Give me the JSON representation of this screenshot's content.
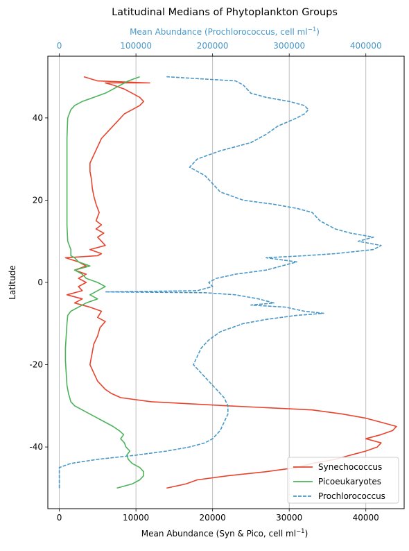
{
  "chart_data": {
    "type": "line",
    "title": "Latitudinal Medians of Phytoplankton Groups",
    "ylabel": "Latitude",
    "xlabel_bottom_prefix": "Mean Abundance (Syn & Pico, cell ml",
    "xlabel_top_prefix": "Mean Abundance (Prochlorococcus, cell ml",
    "xlabel_superscript": "−1",
    "xlabel_suffix": ")",
    "ylim": [
      -55,
      55
    ],
    "xlim_bottom": [
      -1500,
      45000
    ],
    "xlim_top": [
      -15000,
      450000
    ],
    "y_ticks": [
      -40,
      -20,
      0,
      20,
      40
    ],
    "x_ticks_bottom": [
      0,
      10000,
      20000,
      30000,
      40000
    ],
    "x_ticks_top": [
      0,
      100000,
      200000,
      300000,
      400000
    ],
    "grid": "vertical-major",
    "legend_position": "lower-right",
    "series": [
      {
        "name": "Synechococcus",
        "axis": "bottom",
        "color": "#e8432d",
        "style": "solid",
        "points": [
          [
            14000,
            -50
          ],
          [
            16500,
            -49
          ],
          [
            18000,
            -48
          ],
          [
            22000,
            -47
          ],
          [
            27000,
            -46
          ],
          [
            31000,
            -45
          ],
          [
            33000,
            -44
          ],
          [
            36000,
            -43
          ],
          [
            38000,
            -42
          ],
          [
            40000,
            -41
          ],
          [
            41500,
            -40
          ],
          [
            42000,
            -39
          ],
          [
            40000,
            -38
          ],
          [
            42000,
            -37
          ],
          [
            43500,
            -36
          ],
          [
            44000,
            -35
          ],
          [
            42000,
            -34
          ],
          [
            40000,
            -33
          ],
          [
            37000,
            -32
          ],
          [
            33000,
            -31
          ],
          [
            22000,
            -30
          ],
          [
            12000,
            -29
          ],
          [
            8000,
            -28
          ],
          [
            6800,
            -27
          ],
          [
            6000,
            -26
          ],
          [
            5500,
            -25
          ],
          [
            5000,
            -24
          ],
          [
            4500,
            -22
          ],
          [
            4000,
            -20
          ],
          [
            4200,
            -18
          ],
          [
            4500,
            -15
          ],
          [
            5000,
            -13
          ],
          [
            5300,
            -11
          ],
          [
            6000,
            -9.5
          ],
          [
            5000,
            -8.5
          ],
          [
            5500,
            -7
          ],
          [
            4000,
            -6
          ],
          [
            2000,
            -5
          ],
          [
            3000,
            -4
          ],
          [
            1000,
            -3
          ],
          [
            3000,
            -2
          ],
          [
            2500,
            -1
          ],
          [
            3500,
            0
          ],
          [
            2500,
            1
          ],
          [
            3500,
            2
          ],
          [
            2000,
            3
          ],
          [
            3500,
            4
          ],
          [
            2500,
            5
          ],
          [
            800,
            6
          ],
          [
            5000,
            6.5
          ],
          [
            5500,
            7
          ],
          [
            4000,
            8
          ],
          [
            6000,
            9
          ],
          [
            5500,
            10
          ],
          [
            5000,
            11
          ],
          [
            5800,
            12
          ],
          [
            4800,
            13
          ],
          [
            5500,
            14
          ],
          [
            4800,
            15
          ],
          [
            5200,
            17
          ],
          [
            4800,
            19
          ],
          [
            4500,
            21
          ],
          [
            4300,
            23
          ],
          [
            4200,
            25
          ],
          [
            4000,
            27
          ],
          [
            4000,
            29
          ],
          [
            4500,
            31
          ],
          [
            5000,
            33
          ],
          [
            5500,
            35
          ],
          [
            6500,
            37
          ],
          [
            7500,
            39
          ],
          [
            8500,
            41
          ],
          [
            9500,
            42
          ],
          [
            10500,
            43
          ],
          [
            11000,
            44
          ],
          [
            10500,
            45
          ],
          [
            9500,
            46
          ],
          [
            8500,
            47
          ],
          [
            7000,
            48
          ],
          [
            6000,
            48.5
          ],
          [
            11800,
            48.5
          ],
          [
            5000,
            49
          ],
          [
            3200,
            50
          ]
        ]
      },
      {
        "name": "Picoeukaryotes",
        "axis": "bottom",
        "color": "#4cb35a",
        "style": "solid",
        "points": [
          [
            7500,
            -50
          ],
          [
            9500,
            -49
          ],
          [
            10500,
            -48
          ],
          [
            11000,
            -47
          ],
          [
            11000,
            -46
          ],
          [
            10500,
            -45
          ],
          [
            9500,
            -44
          ],
          [
            9000,
            -43
          ],
          [
            8800,
            -42
          ],
          [
            9200,
            -41
          ],
          [
            8700,
            -40
          ],
          [
            8500,
            -39
          ],
          [
            8000,
            -38
          ],
          [
            8400,
            -37
          ],
          [
            7800,
            -36
          ],
          [
            7000,
            -35
          ],
          [
            6000,
            -34
          ],
          [
            5000,
            -33
          ],
          [
            4000,
            -32
          ],
          [
            3000,
            -31
          ],
          [
            2000,
            -30
          ],
          [
            1500,
            -29
          ],
          [
            1200,
            -27
          ],
          [
            1000,
            -25
          ],
          [
            900,
            -22
          ],
          [
            800,
            -19
          ],
          [
            800,
            -16
          ],
          [
            900,
            -13
          ],
          [
            1000,
            -10
          ],
          [
            1100,
            -8
          ],
          [
            1500,
            -7
          ],
          [
            2500,
            -6
          ],
          [
            3500,
            -5
          ],
          [
            5000,
            -4
          ],
          [
            4000,
            -3
          ],
          [
            6000,
            -1
          ],
          [
            5000,
            0
          ],
          [
            3500,
            1
          ],
          [
            3000,
            2
          ],
          [
            2000,
            3
          ],
          [
            4000,
            4
          ],
          [
            2500,
            5
          ],
          [
            2000,
            6
          ],
          [
            1500,
            6.5
          ],
          [
            1500,
            8
          ],
          [
            1100,
            10
          ],
          [
            1000,
            14
          ],
          [
            1000,
            19
          ],
          [
            1000,
            25
          ],
          [
            1000,
            30
          ],
          [
            1000,
            35
          ],
          [
            1100,
            40
          ],
          [
            1500,
            42
          ],
          [
            2000,
            43
          ],
          [
            3000,
            44
          ],
          [
            4500,
            45
          ],
          [
            6000,
            46
          ],
          [
            7000,
            47
          ],
          [
            8000,
            48
          ],
          [
            9000,
            49
          ],
          [
            10500,
            50
          ]
        ]
      },
      {
        "name": "Prochlorococcus",
        "axis": "top",
        "color": "#4897c8",
        "style": "dashed",
        "points": [
          [
            0,
            -50
          ],
          [
            0,
            -47
          ],
          [
            0,
            -45
          ],
          [
            15000,
            -44
          ],
          [
            50000,
            -43
          ],
          [
            100000,
            -42
          ],
          [
            140000,
            -41
          ],
          [
            170000,
            -40
          ],
          [
            190000,
            -39
          ],
          [
            200000,
            -38
          ],
          [
            210000,
            -36
          ],
          [
            215000,
            -34
          ],
          [
            220000,
            -32
          ],
          [
            220000,
            -30
          ],
          [
            215000,
            -28
          ],
          [
            205000,
            -26
          ],
          [
            195000,
            -24
          ],
          [
            185000,
            -22
          ],
          [
            175000,
            -20
          ],
          [
            180000,
            -18
          ],
          [
            185000,
            -16
          ],
          [
            195000,
            -14
          ],
          [
            210000,
            -12
          ],
          [
            240000,
            -10
          ],
          [
            270000,
            -9
          ],
          [
            310000,
            -8
          ],
          [
            345000,
            -7.5
          ],
          [
            320000,
            -7
          ],
          [
            295000,
            -6
          ],
          [
            250000,
            -5.5
          ],
          [
            280000,
            -5
          ],
          [
            260000,
            -4
          ],
          [
            230000,
            -3
          ],
          [
            190000,
            -2.5
          ],
          [
            60000,
            -2.3
          ],
          [
            180000,
            -2
          ],
          [
            200000,
            -1
          ],
          [
            195000,
            0
          ],
          [
            205000,
            1
          ],
          [
            230000,
            2
          ],
          [
            270000,
            3
          ],
          [
            290000,
            4
          ],
          [
            310000,
            5
          ],
          [
            270000,
            6
          ],
          [
            320000,
            6.5
          ],
          [
            360000,
            7
          ],
          [
            410000,
            8
          ],
          [
            420000,
            9
          ],
          [
            390000,
            10
          ],
          [
            410000,
            11
          ],
          [
            380000,
            12
          ],
          [
            360000,
            13
          ],
          [
            340000,
            15
          ],
          [
            330000,
            17
          ],
          [
            310000,
            18
          ],
          [
            280000,
            19
          ],
          [
            240000,
            20
          ],
          [
            210000,
            22
          ],
          [
            200000,
            24
          ],
          [
            190000,
            26
          ],
          [
            170000,
            28
          ],
          [
            180000,
            30
          ],
          [
            210000,
            32
          ],
          [
            250000,
            34
          ],
          [
            270000,
            36
          ],
          [
            285000,
            38
          ],
          [
            310000,
            40
          ],
          [
            320000,
            41
          ],
          [
            325000,
            42
          ],
          [
            320000,
            43
          ],
          [
            300000,
            44
          ],
          [
            270000,
            45
          ],
          [
            250000,
            46
          ],
          [
            245000,
            47
          ],
          [
            240000,
            48
          ],
          [
            230000,
            49
          ],
          [
            140000,
            50
          ]
        ]
      }
    ]
  }
}
